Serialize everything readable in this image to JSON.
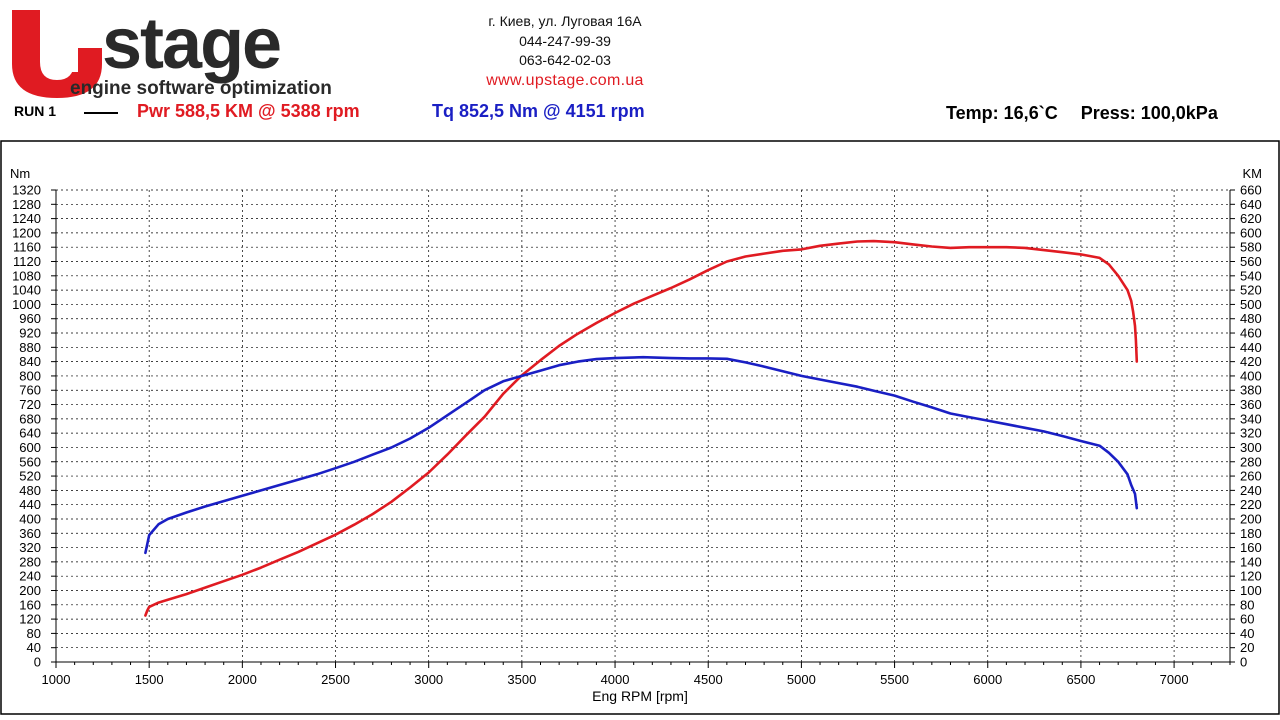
{
  "header": {
    "logo_text": "Upstage",
    "logo_tagline": "engine software optimization",
    "address": "г. Киев, ул. Луговая 16А",
    "phone1": "044-247-99-39",
    "phone2": "063-642-02-03",
    "website": "www.upstage.com.ua"
  },
  "run": {
    "label": "RUN 1",
    "power_text": "Pwr  588,5 KM @ 5388 rpm",
    "torque_text": "Tq 852,5 Nm @ 4151 rpm",
    "temp_text": "Temp: 16,6`C",
    "press_text": "Press: 100,0kPa"
  },
  "colors": {
    "power": "#e01b22",
    "torque": "#1a1fc4",
    "logo_red": "#e01b22",
    "logo_dark": "#2a2a2a"
  },
  "chart_data": {
    "type": "line",
    "title": "",
    "xlabel": "Eng RPM [rpm]",
    "ylabel_left": "Nm",
    "ylabel_right": "KM",
    "xlim": [
      1000,
      7300
    ],
    "ylim_left": [
      0,
      1320
    ],
    "ylim_right": [
      0,
      660
    ],
    "x_ticks": [
      1000,
      1500,
      2000,
      2500,
      3000,
      3500,
      4000,
      4500,
      5000,
      5500,
      6000,
      6500,
      7000
    ],
    "y_left_ticks": [
      0,
      40,
      80,
      120,
      160,
      200,
      240,
      280,
      320,
      360,
      400,
      440,
      480,
      520,
      560,
      600,
      640,
      680,
      720,
      760,
      800,
      840,
      880,
      920,
      960,
      1000,
      1040,
      1080,
      1120,
      1160,
      1200,
      1240,
      1280,
      1320
    ],
    "y_right_ticks": [
      0,
      20,
      40,
      60,
      80,
      100,
      120,
      140,
      160,
      180,
      200,
      220,
      240,
      260,
      280,
      300,
      320,
      340,
      360,
      380,
      400,
      420,
      440,
      460,
      480,
      500,
      520,
      540,
      560,
      580,
      600,
      620,
      640,
      660
    ],
    "grid": true,
    "series": [
      {
        "name": "Pwr",
        "axis": "right",
        "color": "#e01b22",
        "x": [
          1480,
          1490,
          1500,
          1550,
          1600,
          1700,
          1800,
          1900,
          2000,
          2100,
          2200,
          2300,
          2400,
          2500,
          2600,
          2700,
          2800,
          2900,
          3000,
          3100,
          3200,
          3300,
          3400,
          3500,
          3600,
          3700,
          3800,
          3900,
          4000,
          4100,
          4200,
          4300,
          4400,
          4500,
          4600,
          4700,
          4800,
          4900,
          5000,
          5100,
          5200,
          5300,
          5388,
          5500,
          5600,
          5700,
          5800,
          5900,
          6000,
          6100,
          6200,
          6300,
          6400,
          6500,
          6600,
          6650,
          6700,
          6750,
          6770,
          6780,
          6790,
          6795,
          6800
        ],
        "y": [
          65,
          72,
          77,
          83,
          87,
          95,
          104,
          113,
          122,
          132,
          143,
          154,
          166,
          178,
          192,
          207,
          224,
          244,
          265,
          290,
          317,
          343,
          375,
          401,
          422,
          442,
          459,
          474,
          488,
          501,
          512,
          523,
          535,
          548,
          560,
          567,
          571,
          575,
          577,
          582,
          585,
          588,
          588.5,
          587,
          584,
          581,
          579,
          580,
          580,
          580,
          579,
          576,
          573,
          570,
          565,
          556,
          540,
          520,
          505,
          490,
          470,
          450,
          420
        ]
      },
      {
        "name": "Tq",
        "axis": "left",
        "color": "#1a1fc4",
        "x": [
          1480,
          1490,
          1500,
          1550,
          1600,
          1700,
          1800,
          1900,
          2000,
          2100,
          2200,
          2300,
          2400,
          2500,
          2600,
          2700,
          2800,
          2900,
          3000,
          3100,
          3200,
          3300,
          3400,
          3500,
          3600,
          3700,
          3800,
          3900,
          4000,
          4151,
          4300,
          4400,
          4500,
          4600,
          4700,
          4800,
          4900,
          5000,
          5100,
          5200,
          5300,
          5400,
          5500,
          5600,
          5700,
          5800,
          5900,
          6000,
          6100,
          6200,
          6300,
          6400,
          6500,
          6600,
          6650,
          6700,
          6750,
          6770,
          6790,
          6800
        ],
        "y": [
          305,
          330,
          355,
          385,
          400,
          418,
          435,
          450,
          465,
          480,
          495,
          510,
          525,
          542,
          560,
          580,
          600,
          625,
          655,
          690,
          725,
          760,
          785,
          800,
          815,
          830,
          840,
          847,
          850,
          852.5,
          850,
          849,
          849,
          848,
          838,
          826,
          813,
          800,
          790,
          780,
          770,
          757,
          745,
          728,
          712,
          695,
          685,
          675,
          665,
          655,
          645,
          632,
          618,
          605,
          585,
          560,
          525,
          495,
          470,
          430
        ]
      }
    ]
  }
}
